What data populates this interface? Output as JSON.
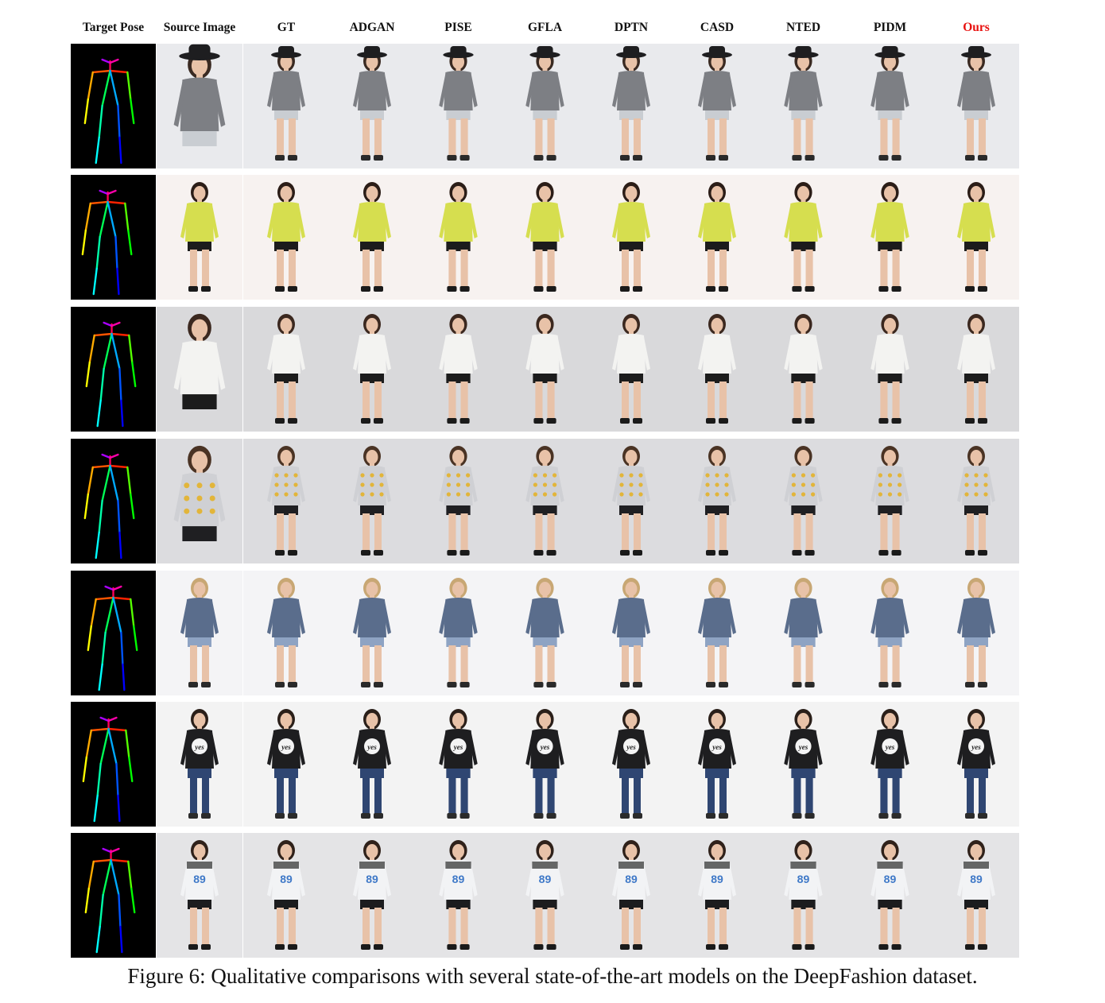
{
  "figure": {
    "columns": [
      "Target Pose",
      "Source Image",
      "GT",
      "ADGAN",
      "PISE",
      "GFLA",
      "DPTN",
      "CASD",
      "NTED",
      "PIDM",
      "Ours"
    ],
    "highlight_column": "Ours",
    "highlight_color": "#e8110f",
    "caption": "Figure 6: Qualitative comparisons with several state-of-the-art models on the DeepFashion dataset.",
    "rows": [
      {
        "background": "#e9eaed",
        "top": "#7d7f84",
        "bottom": "#c9cdd2",
        "hair": "#3a2a22",
        "hat": true,
        "framing": "half",
        "shoes": "#2a2a2a",
        "print": ""
      },
      {
        "background": "#f7f2f0",
        "top": "#d6de4f",
        "bottom": "#1c1c1c",
        "hair": "#2b1d17",
        "hat": false,
        "framing": "full",
        "shoes": "#1a1a1a",
        "print": ""
      },
      {
        "background": "#d9d9db",
        "top": "#f3f3f1",
        "bottom": "#1c1c1c",
        "hair": "#3b281f",
        "hat": false,
        "framing": "half",
        "shoes": "#1a1a1a",
        "print": ""
      },
      {
        "background": "#dcdcdf",
        "top": "#cfd0d4",
        "bottom": "#1f1f22",
        "hair": "#4a3324",
        "hat": false,
        "framing": "half",
        "shoes": "#1a1a1a",
        "print": "dots"
      },
      {
        "background": "#f4f4f6",
        "top": "#5a6d8c",
        "bottom": "#8ea3c3",
        "hair": "#c8a774",
        "hat": false,
        "framing": "full",
        "shoes": "#2a2a2a",
        "print": ""
      },
      {
        "background": "#f3f3f3",
        "top": "#1e1e20",
        "bottom": "#2f4672",
        "hair": "#2a1f19",
        "hat": false,
        "framing": "full",
        "shoes": "#2b2b2b",
        "print": "yes"
      },
      {
        "background": "#e4e4e6",
        "top": "#f2f3f5",
        "bottom": "#1c1c1e",
        "hair": "#2f211a",
        "hat": false,
        "framing": "full",
        "shoes": "#1a1a1a",
        "print": "89"
      }
    ],
    "print_text": {
      "yes": "yes",
      "89": "89"
    }
  }
}
